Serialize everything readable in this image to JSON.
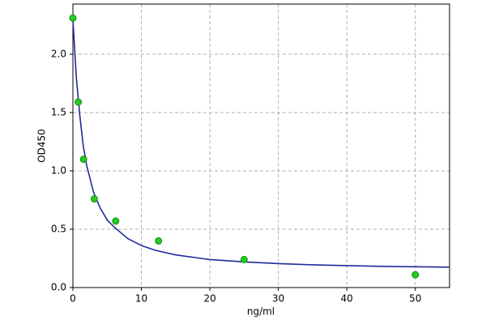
{
  "chart_data": {
    "type": "scatter",
    "x_label": "ng/ml",
    "y_label": "OD450",
    "xlim": [
      0,
      55
    ],
    "ylim": [
      0,
      2.43
    ],
    "xticks": [
      0,
      10,
      20,
      30,
      40,
      50
    ],
    "yticks": [
      {
        "value": 0,
        "label": "0.0"
      },
      0.5,
      {
        "value": 1,
        "label": "1.0"
      },
      1.5,
      {
        "value": 2,
        "label": "2.0"
      }
    ],
    "grid": true,
    "points": {
      "color": "#22cc22",
      "x": [
        0,
        0.78,
        1.56,
        3.125,
        6.25,
        12.5,
        25,
        50
      ],
      "y": [
        2.31,
        1.59,
        1.1,
        0.76,
        0.57,
        0.4,
        0.24,
        0.11
      ]
    },
    "curve": {
      "color": "#1f2a9a",
      "x": [
        0,
        0.5,
        1,
        1.5,
        2,
        3,
        4,
        5,
        6,
        8,
        10,
        12,
        15,
        20,
        25,
        30,
        35,
        40,
        45,
        50,
        55
      ],
      "y": [
        2.3,
        1.8,
        1.48,
        1.22,
        1.05,
        0.82,
        0.68,
        0.58,
        0.52,
        0.42,
        0.36,
        0.32,
        0.28,
        0.24,
        0.22,
        0.205,
        0.195,
        0.188,
        0.182,
        0.178,
        0.175
      ]
    }
  }
}
